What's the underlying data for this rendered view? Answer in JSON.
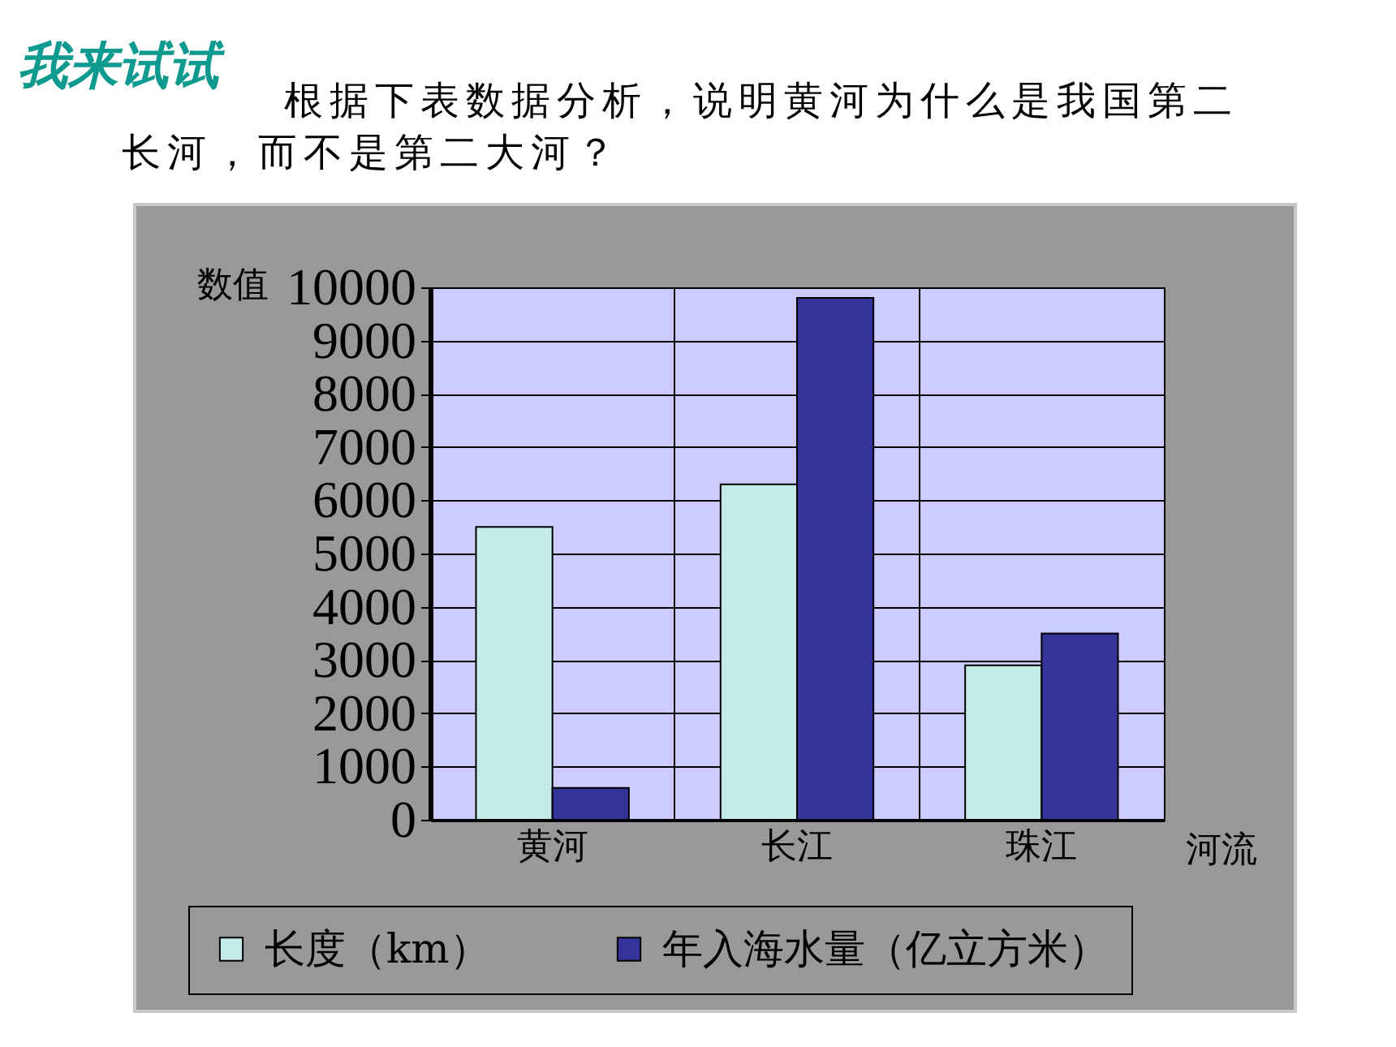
{
  "chart_data": {
    "type": "bar",
    "title": "我来试试",
    "subtitle": "根据下表数据分析，说明黄河为什么是我国第二长河，而不是第二大河？",
    "xlabel": "河流",
    "ylabel": "数值",
    "categories": [
      "黄河",
      "长江",
      "珠江"
    ],
    "series": [
      {
        "name": "长度（km）",
        "color": "#c4eaea",
        "values": [
          5500,
          6300,
          2900
        ]
      },
      {
        "name": "年入海水量（亿立方米）",
        "color": "#333399",
        "values": [
          600,
          9800,
          3500
        ]
      }
    ],
    "ylim": [
      0,
      10000
    ],
    "yticks": [
      0,
      1000,
      2000,
      3000,
      4000,
      5000,
      6000,
      7000,
      8000,
      9000,
      10000
    ],
    "grid": true,
    "legend": "bottom"
  }
}
